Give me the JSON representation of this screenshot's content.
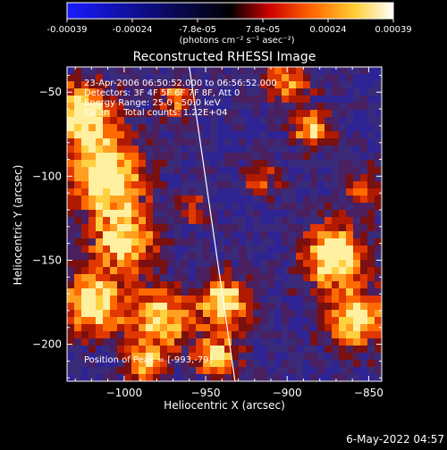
{
  "colorbar": {
    "ticks": [
      "-0.00039",
      "-0.00024",
      "-7.8e-05",
      "7.8e-05",
      "0.00024",
      "0.00039"
    ],
    "unit_label": "(photons cm⁻² s⁻¹ asec⁻²)",
    "colors": [
      "#1a1aff",
      "#000000",
      "#ff0000",
      "#ff9900",
      "#ffff66",
      "#ffffff"
    ]
  },
  "footer": {
    "timestamp": "6-May-2022 04:57"
  },
  "chart_data": {
    "type": "heatmap",
    "title": "Reconstructed RHESSI Image",
    "xlabel": "Heliocentric X (arcsec)",
    "ylabel": "Heliocentric Y (arcsec)",
    "xlim": [
      -1035,
      -842
    ],
    "ylim": [
      -222,
      -35
    ],
    "xticks": [
      -1000,
      -950,
      -900,
      -850
    ],
    "yticks": [
      -50,
      -100,
      -150,
      -200
    ],
    "xtick_labels": [
      "−1000",
      "−950",
      "−900",
      "−850"
    ],
    "ytick_labels": [
      "−50",
      "−100",
      "−150",
      "−200"
    ],
    "annotations": [
      "23-Apr-2006 06:50:52.000 to 06:56:52.000",
      "Detectors: 3F 4F 5F 6F 7F 8F, Att 0",
      "Energy Range: 25.0 - 50.0 keV",
      "Clean     Total counts: 1.22E+04"
    ],
    "peak_label": "Position of Peak = [-993,-79]",
    "peak": [
      -993,
      -79
    ],
    "limb_line": [
      [
        -960,
        -35
      ],
      [
        -932,
        -222
      ]
    ],
    "grid": false
  }
}
